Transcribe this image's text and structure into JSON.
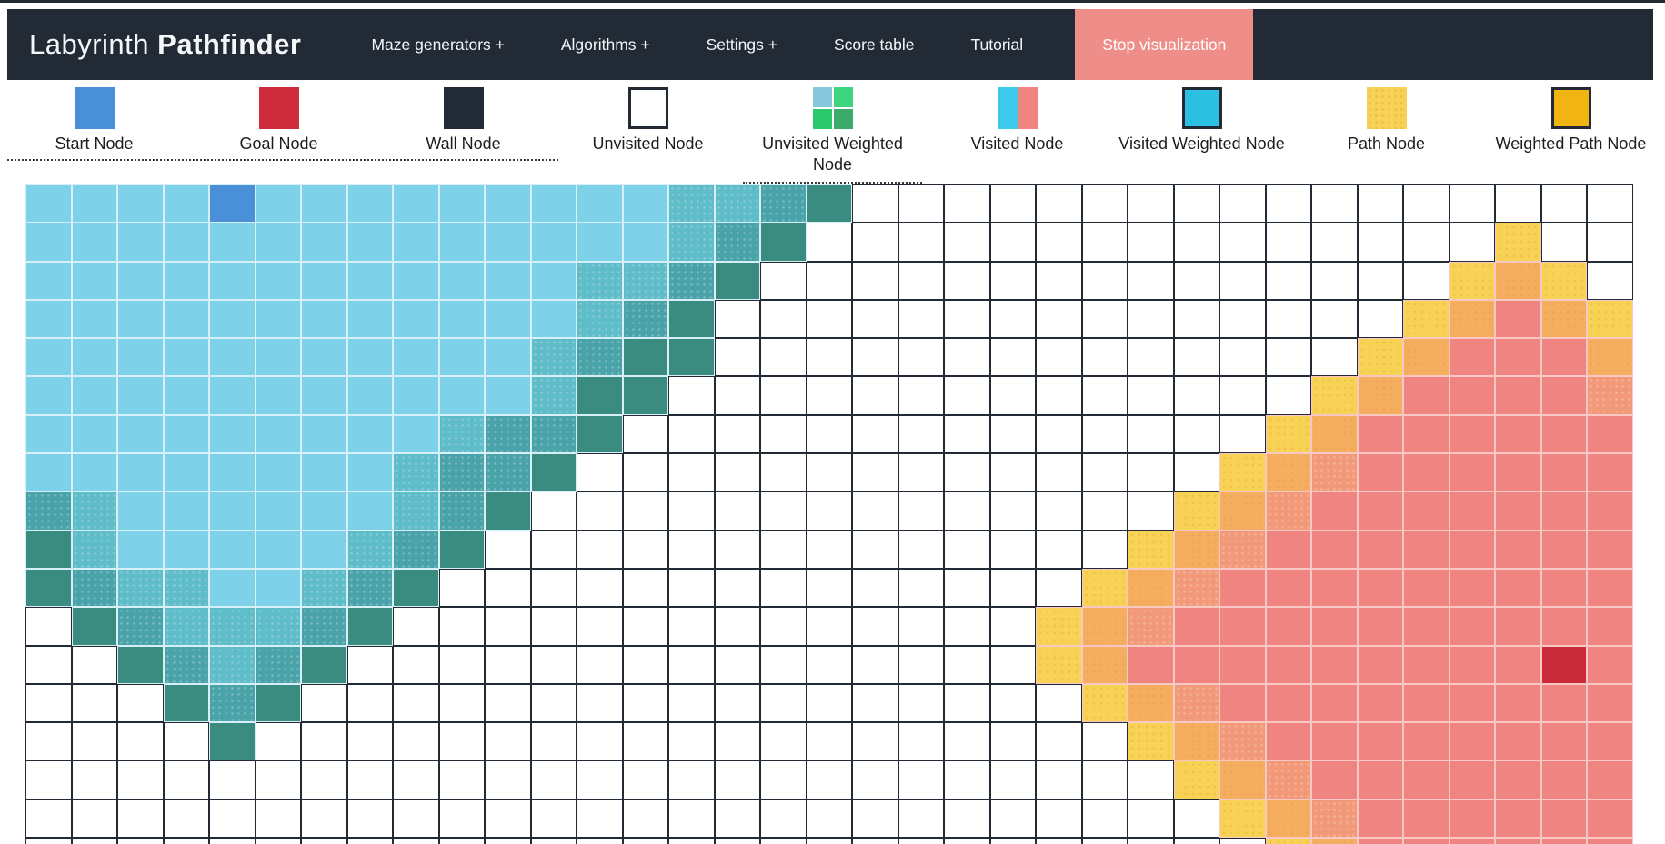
{
  "navbar": {
    "title_regular": "Labyrinth",
    "title_bold": "Pathfinder",
    "items": [
      {
        "id": "maze-generators",
        "label": "Maze generators +"
      },
      {
        "id": "algorithms",
        "label": "Algorithms +"
      },
      {
        "id": "settings",
        "label": "Settings +"
      },
      {
        "id": "score-table",
        "label": "Score table"
      },
      {
        "id": "tutorial",
        "label": "Tutorial"
      }
    ],
    "stop_button": {
      "label": "Stop visualization"
    }
  },
  "legend": {
    "items": [
      {
        "id": "start",
        "label": "Start Node"
      },
      {
        "id": "goal",
        "label": "Goal Node"
      },
      {
        "id": "wall",
        "label": "Wall Node"
      },
      {
        "id": "unvisited",
        "label": "Unvisited Node"
      },
      {
        "id": "unvisited-weighted",
        "label": "Unvisited Weighted Node"
      },
      {
        "id": "visited",
        "label": "Visited Node"
      },
      {
        "id": "visited-weighted",
        "label": "Visited Weighted Node"
      },
      {
        "id": "path",
        "label": "Path Node"
      },
      {
        "id": "weighted-path",
        "label": "Weighted Path Node"
      }
    ]
  },
  "board": {
    "columns": 35,
    "visible_rows": 18,
    "cell_states": {
      ".": "unvisited",
      "c": "visited-cyan",
      "t": "visited-teal",
      "u": "visited-teal-dark",
      "d": "visited-frontier-green",
      "S": "start-node",
      "G": "goal-node",
      "y": "frontier-yellow",
      "o": "frontier-orange",
      "q": "frontier-salmon-orange",
      "s": "visited-salmon"
    },
    "rows": [
      "ccccScccccccccttud.................",
      "cccccccccccccctud...............y..",
      "ccccccccccccttud...............yoy.",
      "cccccccccccctud...............yosoy",
      "ccccccccccctudd..............yossso",
      "ccccccccccctdd..............yossssq",
      "ccccccccctuud..............yossssss",
      "cccccccctuud..............yoqssssss",
      "utcccccctud..............yoqsssssss",
      "dtccccctud..............yoqssssssss",
      "duttcctud..............yoqsssssssss",
      ".dutttud..............yoqssssssssss",
      "..dutud...............yosssssssssGs",
      "...dud.................yoqsssssssss",
      "....d...................yoqssssssss",
      ".........................yoqsssssss",
      "..........................yoqssssss",
      "...........................yossssss"
    ]
  },
  "colors": {
    "navbar-bg": "#222A36",
    "navbar-text": "#F4F6F8",
    "stop-btn": "#EF8E88",
    "legend-text": "#1D1D1D",
    "grid-line-dark": "#222A36",
    "wall-dark": "#222A36",
    "start-blue": "#4A90D8",
    "goal-red": "#C92B3B",
    "legend-goal-red": "#CE2B3C",
    "visited-cyan": "#7DD2EA",
    "visited-teal": "#5FBCC9",
    "visited-teal-dark": "#4AA3A8",
    "visited-frontier": "#3A8C81",
    "path-yellow": "#F7D254",
    "frontier-orange": "#F5AD60",
    "frontier-salmon-orange": "#F2997A",
    "visited-salmon": "#F08480",
    "legend-visited-cyan": "#3DC9EA",
    "legend-visited-weighted": "#2BBFE2",
    "legend-weighted-path": "#F0B413",
    "legend-green-1": "#87C7DB",
    "legend-green-2": "#3FD47E",
    "legend-green-3": "#2BC96D",
    "legend-green-4": "#3BAA6A",
    "border-light-cyan": "#D7F0F8",
    "border-light-pink": "#F8C9C4"
  }
}
